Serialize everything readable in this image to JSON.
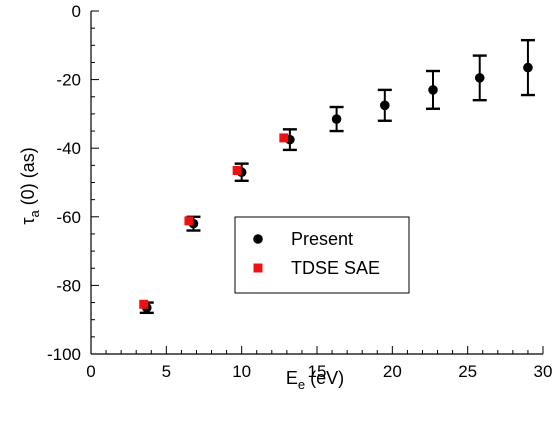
{
  "chart_data": {
    "type": "scatter",
    "xlim": [
      0,
      30
    ],
    "ylim": [
      -100,
      0
    ],
    "xticks": [
      0,
      5,
      10,
      15,
      20,
      25,
      30
    ],
    "yticks": [
      0,
      -20,
      -40,
      -60,
      -80,
      -100
    ],
    "xlabel": {
      "main": "E",
      "sub": "e",
      "rest": " (eV)"
    },
    "ylabel": {
      "main": "τ",
      "sub": "a",
      "rest": " (0) (as)"
    },
    "grid": false,
    "legend_position": "center-right",
    "series": [
      {
        "name": "Present",
        "marker": "circle",
        "color": "#000000",
        "points": [
          {
            "x": 3.7,
            "y": -86.5,
            "err": 1.5
          },
          {
            "x": 6.8,
            "y": -62.0,
            "err": 2.0
          },
          {
            "x": 10.0,
            "y": -47.0,
            "err": 2.5
          },
          {
            "x": 13.2,
            "y": -37.5,
            "err": 3.0
          },
          {
            "x": 16.3,
            "y": -31.5,
            "err": 3.5
          },
          {
            "x": 19.5,
            "y": -27.5,
            "err": 4.5
          },
          {
            "x": 22.7,
            "y": -23.0,
            "err": 5.5
          },
          {
            "x": 25.8,
            "y": -19.5,
            "err": 6.5
          },
          {
            "x": 29.0,
            "y": -16.5,
            "err": 8.0
          }
        ]
      },
      {
        "name": "TDSE SAE",
        "marker": "square",
        "color": "#ee1111",
        "points": [
          {
            "x": 3.5,
            "y": -85.5
          },
          {
            "x": 6.5,
            "y": -61.2
          },
          {
            "x": 9.7,
            "y": -46.5
          },
          {
            "x": 12.8,
            "y": -37.0
          }
        ]
      }
    ]
  }
}
